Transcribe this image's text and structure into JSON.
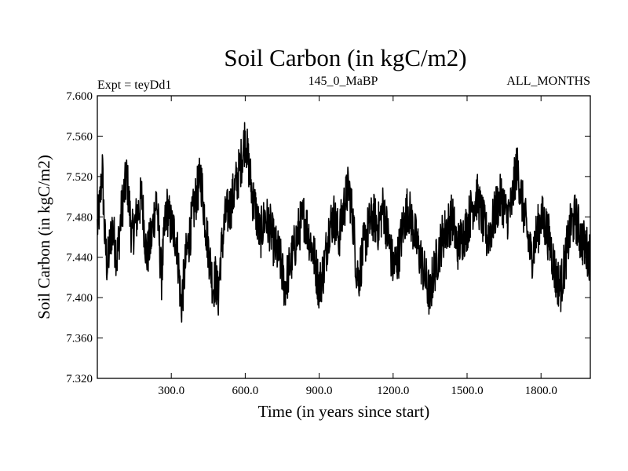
{
  "chart_data": {
    "type": "line",
    "title": "Soil Carbon (in kgC/m2)",
    "subtitle_left": "Expt = teyDd1",
    "subtitle_center": "145_0_MaBP",
    "subtitle_right": "ALL_MONTHS",
    "xlabel": "Time (in years since start)",
    "ylabel": "Soil Carbon (in kgC/m2)",
    "xlim": [
      0,
      2000
    ],
    "ylim": [
      7.32,
      7.6
    ],
    "x_ticks": [
      300,
      600,
      900,
      1200,
      1500,
      1800
    ],
    "x_tick_labels": [
      "300.0",
      "600.0",
      "900.0",
      "1200.0",
      "1500.0",
      "1800.0"
    ],
    "y_ticks": [
      7.32,
      7.36,
      7.4,
      7.44,
      7.48,
      7.52,
      7.56,
      7.6
    ],
    "y_tick_labels": [
      "7.320",
      "7.360",
      "7.400",
      "7.440",
      "7.480",
      "7.520",
      "7.560",
      "7.600"
    ],
    "series": [
      {
        "name": "Soil Carbon",
        "color": "#000000",
        "x": [
          0,
          10,
          20,
          30,
          40,
          60,
          80,
          100,
          120,
          140,
          160,
          180,
          200,
          220,
          240,
          260,
          280,
          300,
          320,
          330,
          340,
          360,
          380,
          400,
          420,
          440,
          460,
          470,
          480,
          490,
          500,
          520,
          540,
          560,
          580,
          600,
          610,
          620,
          630,
          640,
          660,
          680,
          700,
          720,
          740,
          760,
          780,
          800,
          820,
          840,
          860,
          880,
          900,
          920,
          940,
          960,
          980,
          1000,
          1020,
          1040,
          1050,
          1060,
          1080,
          1100,
          1120,
          1140,
          1160,
          1180,
          1200,
          1220,
          1240,
          1260,
          1280,
          1300,
          1320,
          1340,
          1350,
          1360,
          1380,
          1400,
          1420,
          1440,
          1460,
          1480,
          1500,
          1520,
          1540,
          1560,
          1580,
          1600,
          1620,
          1640,
          1660,
          1680,
          1700,
          1710,
          1720,
          1740,
          1760,
          1780,
          1800,
          1820,
          1840,
          1860,
          1880,
          1900,
          1920,
          1940,
          1960,
          1980,
          2000
        ],
        "values": [
          7.47,
          7.49,
          7.53,
          7.46,
          7.43,
          7.47,
          7.44,
          7.49,
          7.52,
          7.46,
          7.48,
          7.5,
          7.44,
          7.46,
          7.5,
          7.42,
          7.49,
          7.47,
          7.46,
          7.43,
          7.39,
          7.44,
          7.47,
          7.5,
          7.52,
          7.47,
          7.43,
          7.41,
          7.42,
          7.4,
          7.44,
          7.48,
          7.49,
          7.51,
          7.53,
          7.56,
          7.54,
          7.52,
          7.5,
          7.49,
          7.46,
          7.48,
          7.47,
          7.45,
          7.44,
          7.41,
          7.43,
          7.45,
          7.47,
          7.48,
          7.46,
          7.44,
          7.41,
          7.43,
          7.47,
          7.48,
          7.46,
          7.49,
          7.51,
          7.47,
          7.43,
          7.42,
          7.45,
          7.47,
          7.48,
          7.47,
          7.49,
          7.46,
          7.43,
          7.44,
          7.47,
          7.49,
          7.47,
          7.45,
          7.43,
          7.41,
          7.4,
          7.42,
          7.44,
          7.46,
          7.47,
          7.48,
          7.45,
          7.46,
          7.47,
          7.49,
          7.5,
          7.48,
          7.46,
          7.47,
          7.49,
          7.5,
          7.48,
          7.49,
          7.53,
          7.52,
          7.5,
          7.47,
          7.44,
          7.46,
          7.48,
          7.47,
          7.45,
          7.42,
          7.41,
          7.44,
          7.47,
          7.48,
          7.46,
          7.45,
          7.44
        ]
      }
    ]
  }
}
